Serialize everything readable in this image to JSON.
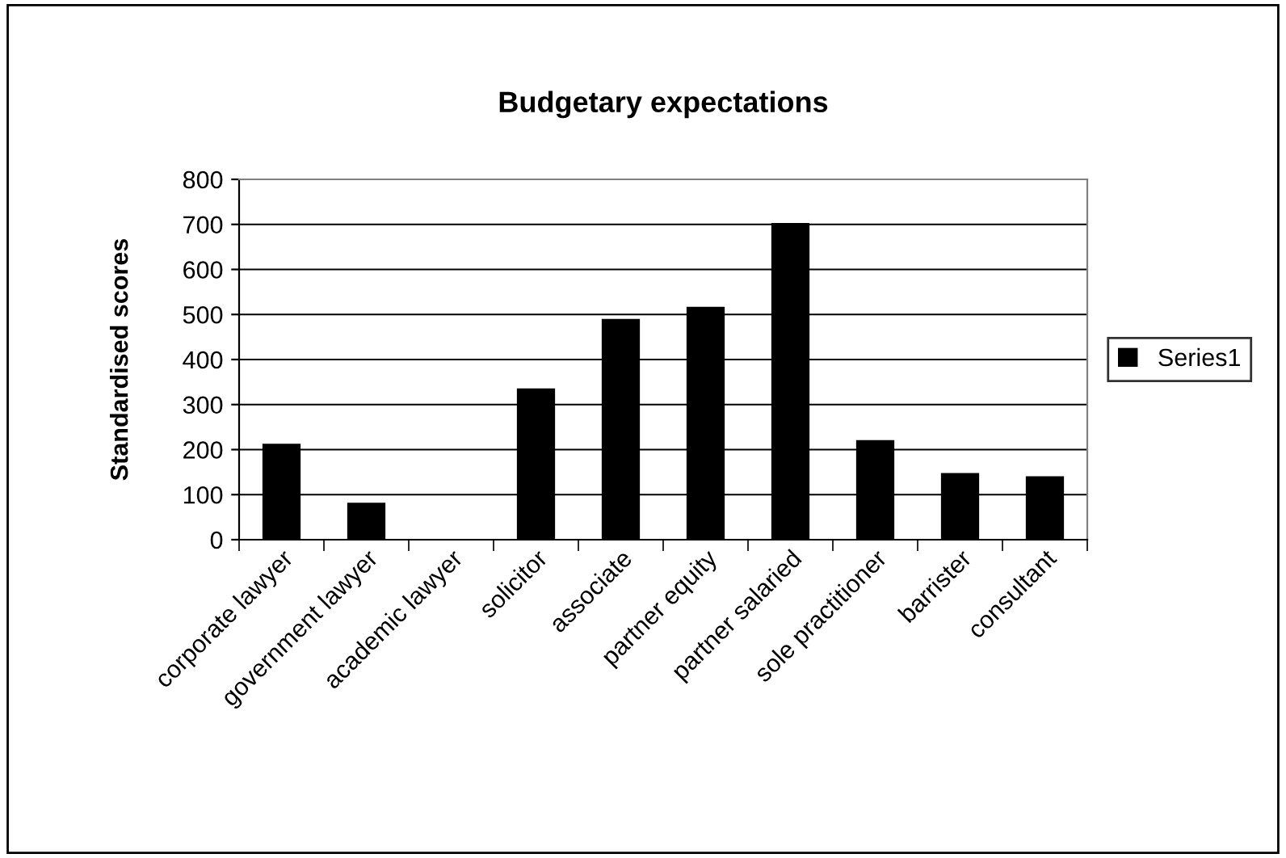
{
  "chart_data": {
    "type": "bar",
    "title": "Budgetary expectations",
    "ylabel": "Standardised scores",
    "categories": [
      "corporate lawyer",
      "government lawyer",
      "academic lawyer",
      "solicitor",
      "associate",
      "partner equity",
      "partner salaried",
      "sole practitioner",
      "barrister",
      "consultant"
    ],
    "series": [
      {
        "name": "Series1",
        "color": "#000000",
        "values": [
          213,
          82,
          0,
          336,
          490,
          517,
          703,
          221,
          148,
          141
        ]
      }
    ],
    "ylim": [
      0,
      800
    ],
    "yticks": [
      0,
      100,
      200,
      300,
      400,
      500,
      600,
      700,
      800
    ],
    "grid": "y",
    "legend": "right"
  }
}
